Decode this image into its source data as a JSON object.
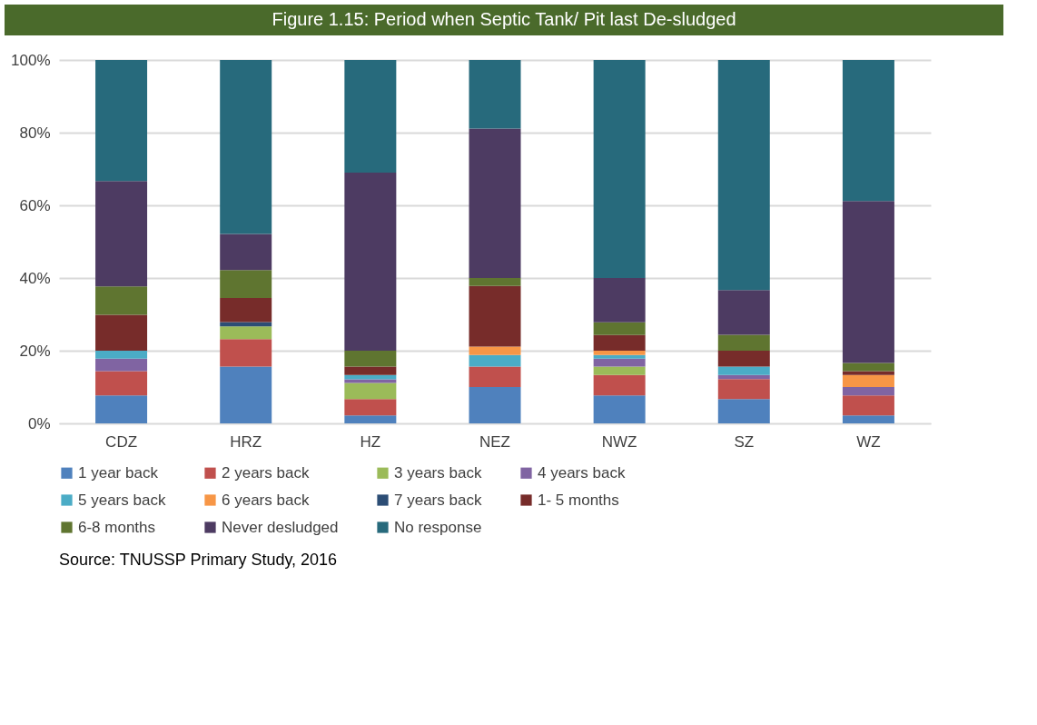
{
  "chart_data": {
    "type": "bar",
    "stacked": true,
    "title": "Figure 1.15: Period when Septic Tank/ Pit last De-sludged",
    "categories": [
      "CDZ",
      "HRZ",
      "HZ",
      "NEZ",
      "NWZ",
      "SZ",
      "WZ"
    ],
    "series": [
      {
        "name": "1 year back",
        "color": "#4f81bd",
        "values": [
          7.7,
          15.6,
          2.2,
          10.0,
          7.7,
          6.7,
          2.2
        ]
      },
      {
        "name": "2 years back",
        "color": "#c0504d",
        "values": [
          6.7,
          7.6,
          4.5,
          5.6,
          5.6,
          5.5,
          5.5
        ]
      },
      {
        "name": "3 years back",
        "color": "#9bbb59",
        "values": [
          0,
          3.5,
          4.4,
          0,
          2.3,
          0,
          0
        ]
      },
      {
        "name": "4 years back",
        "color": "#8064a2",
        "values": [
          3.4,
          0,
          1.0,
          0,
          2.2,
          1.1,
          2.3
        ]
      },
      {
        "name": "5 years back",
        "color": "#4bacc6",
        "values": [
          2.2,
          0,
          1.2,
          3.2,
          1.0,
          2.3,
          0
        ]
      },
      {
        "name": "6 years back",
        "color": "#f79646",
        "values": [
          0,
          0,
          0,
          2.3,
          1.2,
          0,
          3.3
        ]
      },
      {
        "name": "7 years back",
        "color": "#2c4d75",
        "values": [
          0,
          1.2,
          0,
          0,
          0,
          0,
          0
        ]
      },
      {
        "name": "1- 5 months",
        "color": "#772c2a",
        "values": [
          9.9,
          6.6,
          2.3,
          16.7,
          4.3,
          4.4,
          1.1
        ]
      },
      {
        "name": "6-8 months",
        "color": "#5f7530",
        "values": [
          7.8,
          7.7,
          4.4,
          2.2,
          3.5,
          4.4,
          2.2
        ]
      },
      {
        "name": "Never desludged",
        "color": "#4d3b62",
        "values": [
          29.0,
          9.9,
          49.0,
          41.1,
          12.2,
          12.3,
          44.6
        ]
      },
      {
        "name": "No response",
        "color": "#276a7c",
        "values": [
          33.3,
          47.9,
          31.0,
          18.9,
          60.0,
          63.3,
          38.8
        ]
      }
    ],
    "ylim": [
      0,
      100
    ],
    "yticks": [
      {
        "value": 0,
        "label": "0%"
      },
      {
        "value": 20,
        "label": "20%"
      },
      {
        "value": 40,
        "label": "40%"
      },
      {
        "value": 60,
        "label": "60%"
      },
      {
        "value": 80,
        "label": "80%"
      },
      {
        "value": 100,
        "label": "100%"
      }
    ],
    "grid": "y",
    "legend": "bottom",
    "annotations": [
      "Source: TNUSSP Primary Study, 2016"
    ]
  }
}
